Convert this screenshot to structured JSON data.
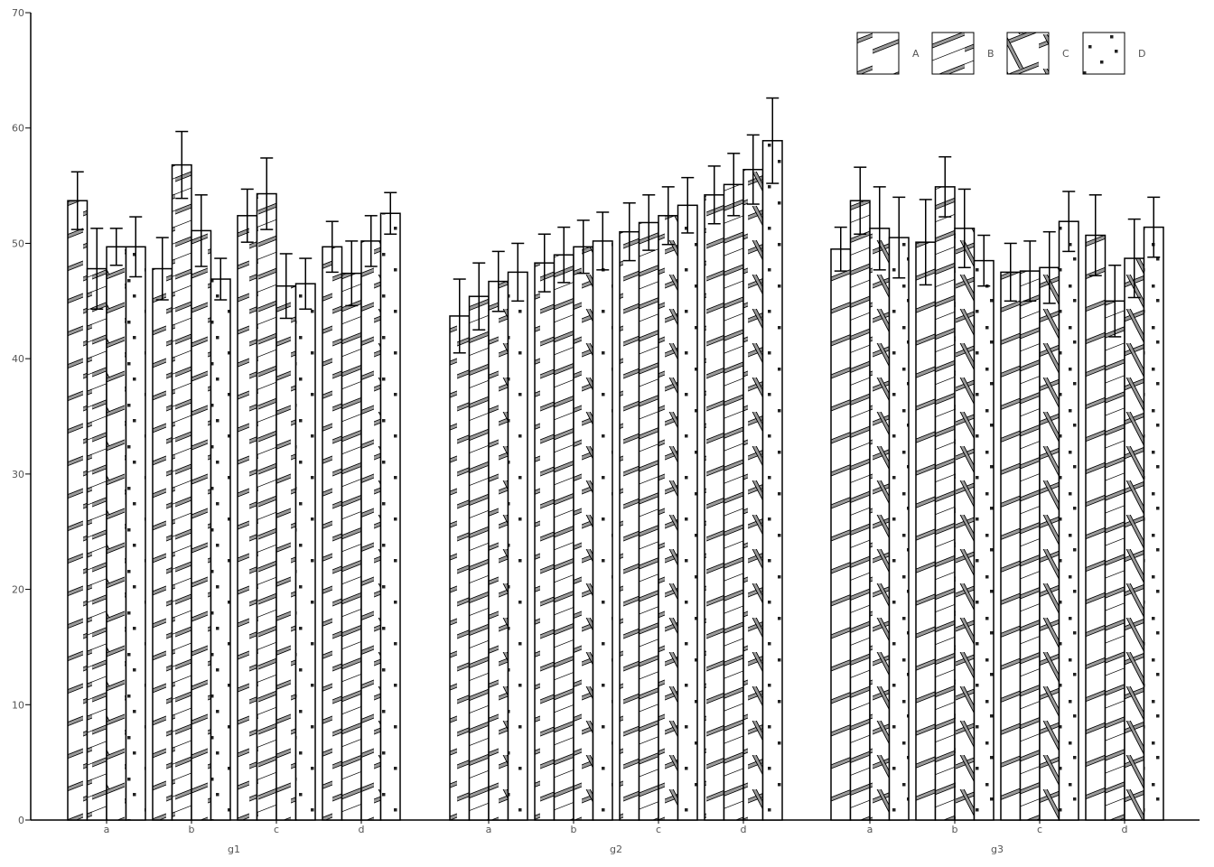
{
  "chart_data": {
    "type": "bar",
    "title": "",
    "xlabel": "",
    "ylabel": "",
    "ylim": [
      0,
      70
    ],
    "yticks": [
      0,
      10,
      20,
      30,
      40,
      50,
      60,
      70
    ],
    "grid": false,
    "legend_position": "top-right",
    "groups": [
      {
        "label": "g1",
        "categories": [
          {
            "label": "a",
            "values": [
              53.7,
              47.8,
              49.7,
              49.7
            ],
            "errors": [
              2.5,
              3.5,
              1.6,
              2.6
            ]
          },
          {
            "label": "b",
            "values": [
              47.8,
              56.8,
              51.1,
              46.9
            ],
            "errors": [
              2.7,
              2.9,
              3.1,
              1.8
            ]
          },
          {
            "label": "c",
            "values": [
              52.4,
              54.3,
              46.3,
              46.5
            ],
            "errors": [
              2.3,
              3.1,
              2.8,
              2.2
            ]
          },
          {
            "label": "d",
            "values": [
              49.7,
              47.4,
              50.2,
              52.6
            ],
            "errors": [
              2.2,
              2.8,
              2.2,
              1.8
            ]
          }
        ]
      },
      {
        "label": "g2",
        "categories": [
          {
            "label": "a",
            "values": [
              43.7,
              45.4,
              46.7,
              47.5
            ],
            "errors": [
              3.2,
              2.9,
              2.6,
              2.5
            ]
          },
          {
            "label": "b",
            "values": [
              48.3,
              49.0,
              49.7,
              50.2
            ],
            "errors": [
              2.5,
              2.4,
              2.3,
              2.5
            ]
          },
          {
            "label": "c",
            "values": [
              51.0,
              51.8,
              52.4,
              53.3
            ],
            "errors": [
              2.5,
              2.4,
              2.5,
              2.4
            ]
          },
          {
            "label": "d",
            "values": [
              54.2,
              55.1,
              56.4,
              58.9
            ],
            "errors": [
              2.5,
              2.7,
              3.0,
              3.7
            ]
          }
        ]
      },
      {
        "label": "g3",
        "categories": [
          {
            "label": "a",
            "values": [
              49.5,
              53.7,
              51.3,
              50.5
            ],
            "errors": [
              1.9,
              2.9,
              3.6,
              3.5
            ]
          },
          {
            "label": "b",
            "values": [
              50.1,
              54.9,
              51.3,
              48.5
            ],
            "errors": [
              3.7,
              2.6,
              3.4,
              2.2
            ]
          },
          {
            "label": "c",
            "values": [
              47.5,
              47.6,
              47.9,
              51.9
            ],
            "errors": [
              2.5,
              2.6,
              3.1,
              2.6
            ]
          },
          {
            "label": "d",
            "values": [
              50.7,
              45.0,
              48.7,
              51.4
            ],
            "errors": [
              3.5,
              3.1,
              3.4,
              2.6
            ]
          }
        ]
      }
    ],
    "series": [
      {
        "name": "A",
        "pattern": "diagonal-up"
      },
      {
        "name": "B",
        "pattern": "diagonal-up-double"
      },
      {
        "name": "C",
        "pattern": "crosshatch"
      },
      {
        "name": "D",
        "pattern": "dots"
      }
    ],
    "colors": {
      "stroke": "#000000",
      "fill": "#ffffff",
      "text": "#555555",
      "hatch": "#888888"
    }
  }
}
